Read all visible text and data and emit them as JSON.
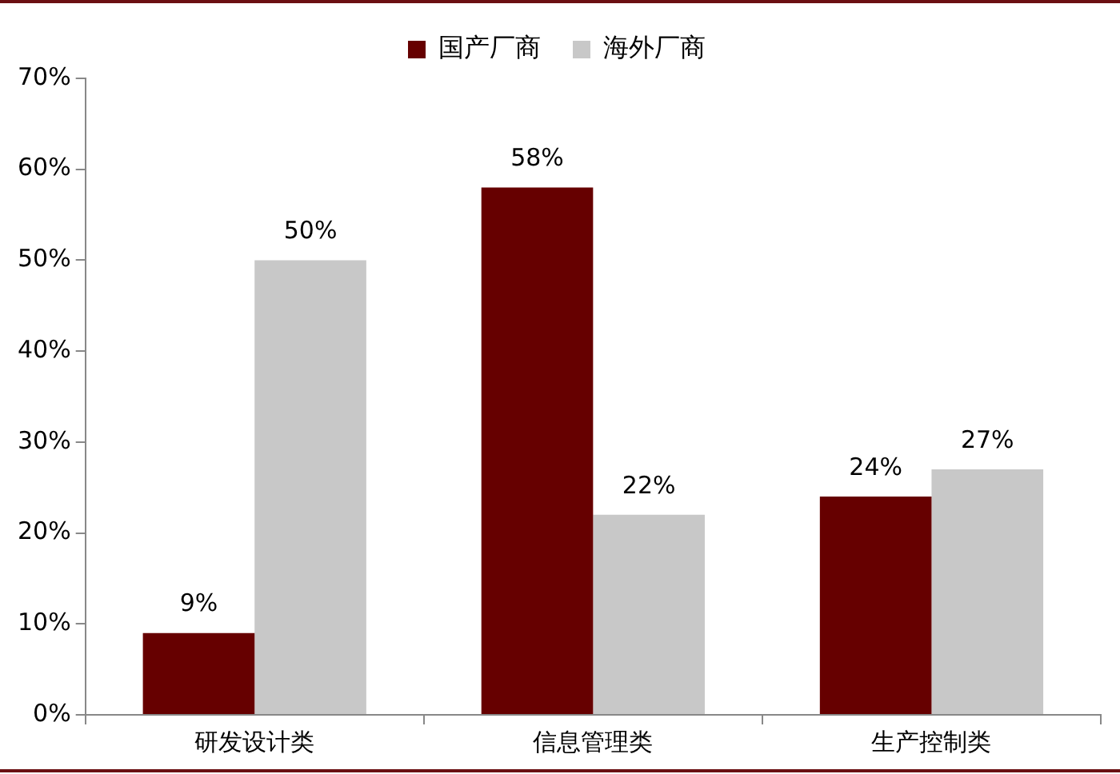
{
  "chart_data": {
    "type": "bar",
    "categories": [
      "研发设计类",
      "信息管理类",
      "生产控制类"
    ],
    "series": [
      {
        "name": "国产厂商",
        "color": "#660000",
        "values": [
          9,
          58,
          24
        ],
        "value_labels": [
          "9%",
          "58%",
          "24%"
        ]
      },
      {
        "name": "海外厂商",
        "color": "#c8c8c8",
        "values": [
          50,
          22,
          27
        ],
        "value_labels": [
          "50%",
          "22%",
          "27%"
        ]
      }
    ],
    "ylim": [
      0,
      70
    ],
    "yticks": [
      {
        "value": 0,
        "label": "0%"
      },
      {
        "value": 10,
        "label": "10%"
      },
      {
        "value": 20,
        "label": "20%"
      },
      {
        "value": 30,
        "label": "30%"
      },
      {
        "value": 40,
        "label": "40%"
      },
      {
        "value": 50,
        "label": "50%"
      },
      {
        "value": 60,
        "label": "60%"
      },
      {
        "value": 70,
        "label": "70%"
      }
    ],
    "grid": false,
    "legend": "top"
  }
}
